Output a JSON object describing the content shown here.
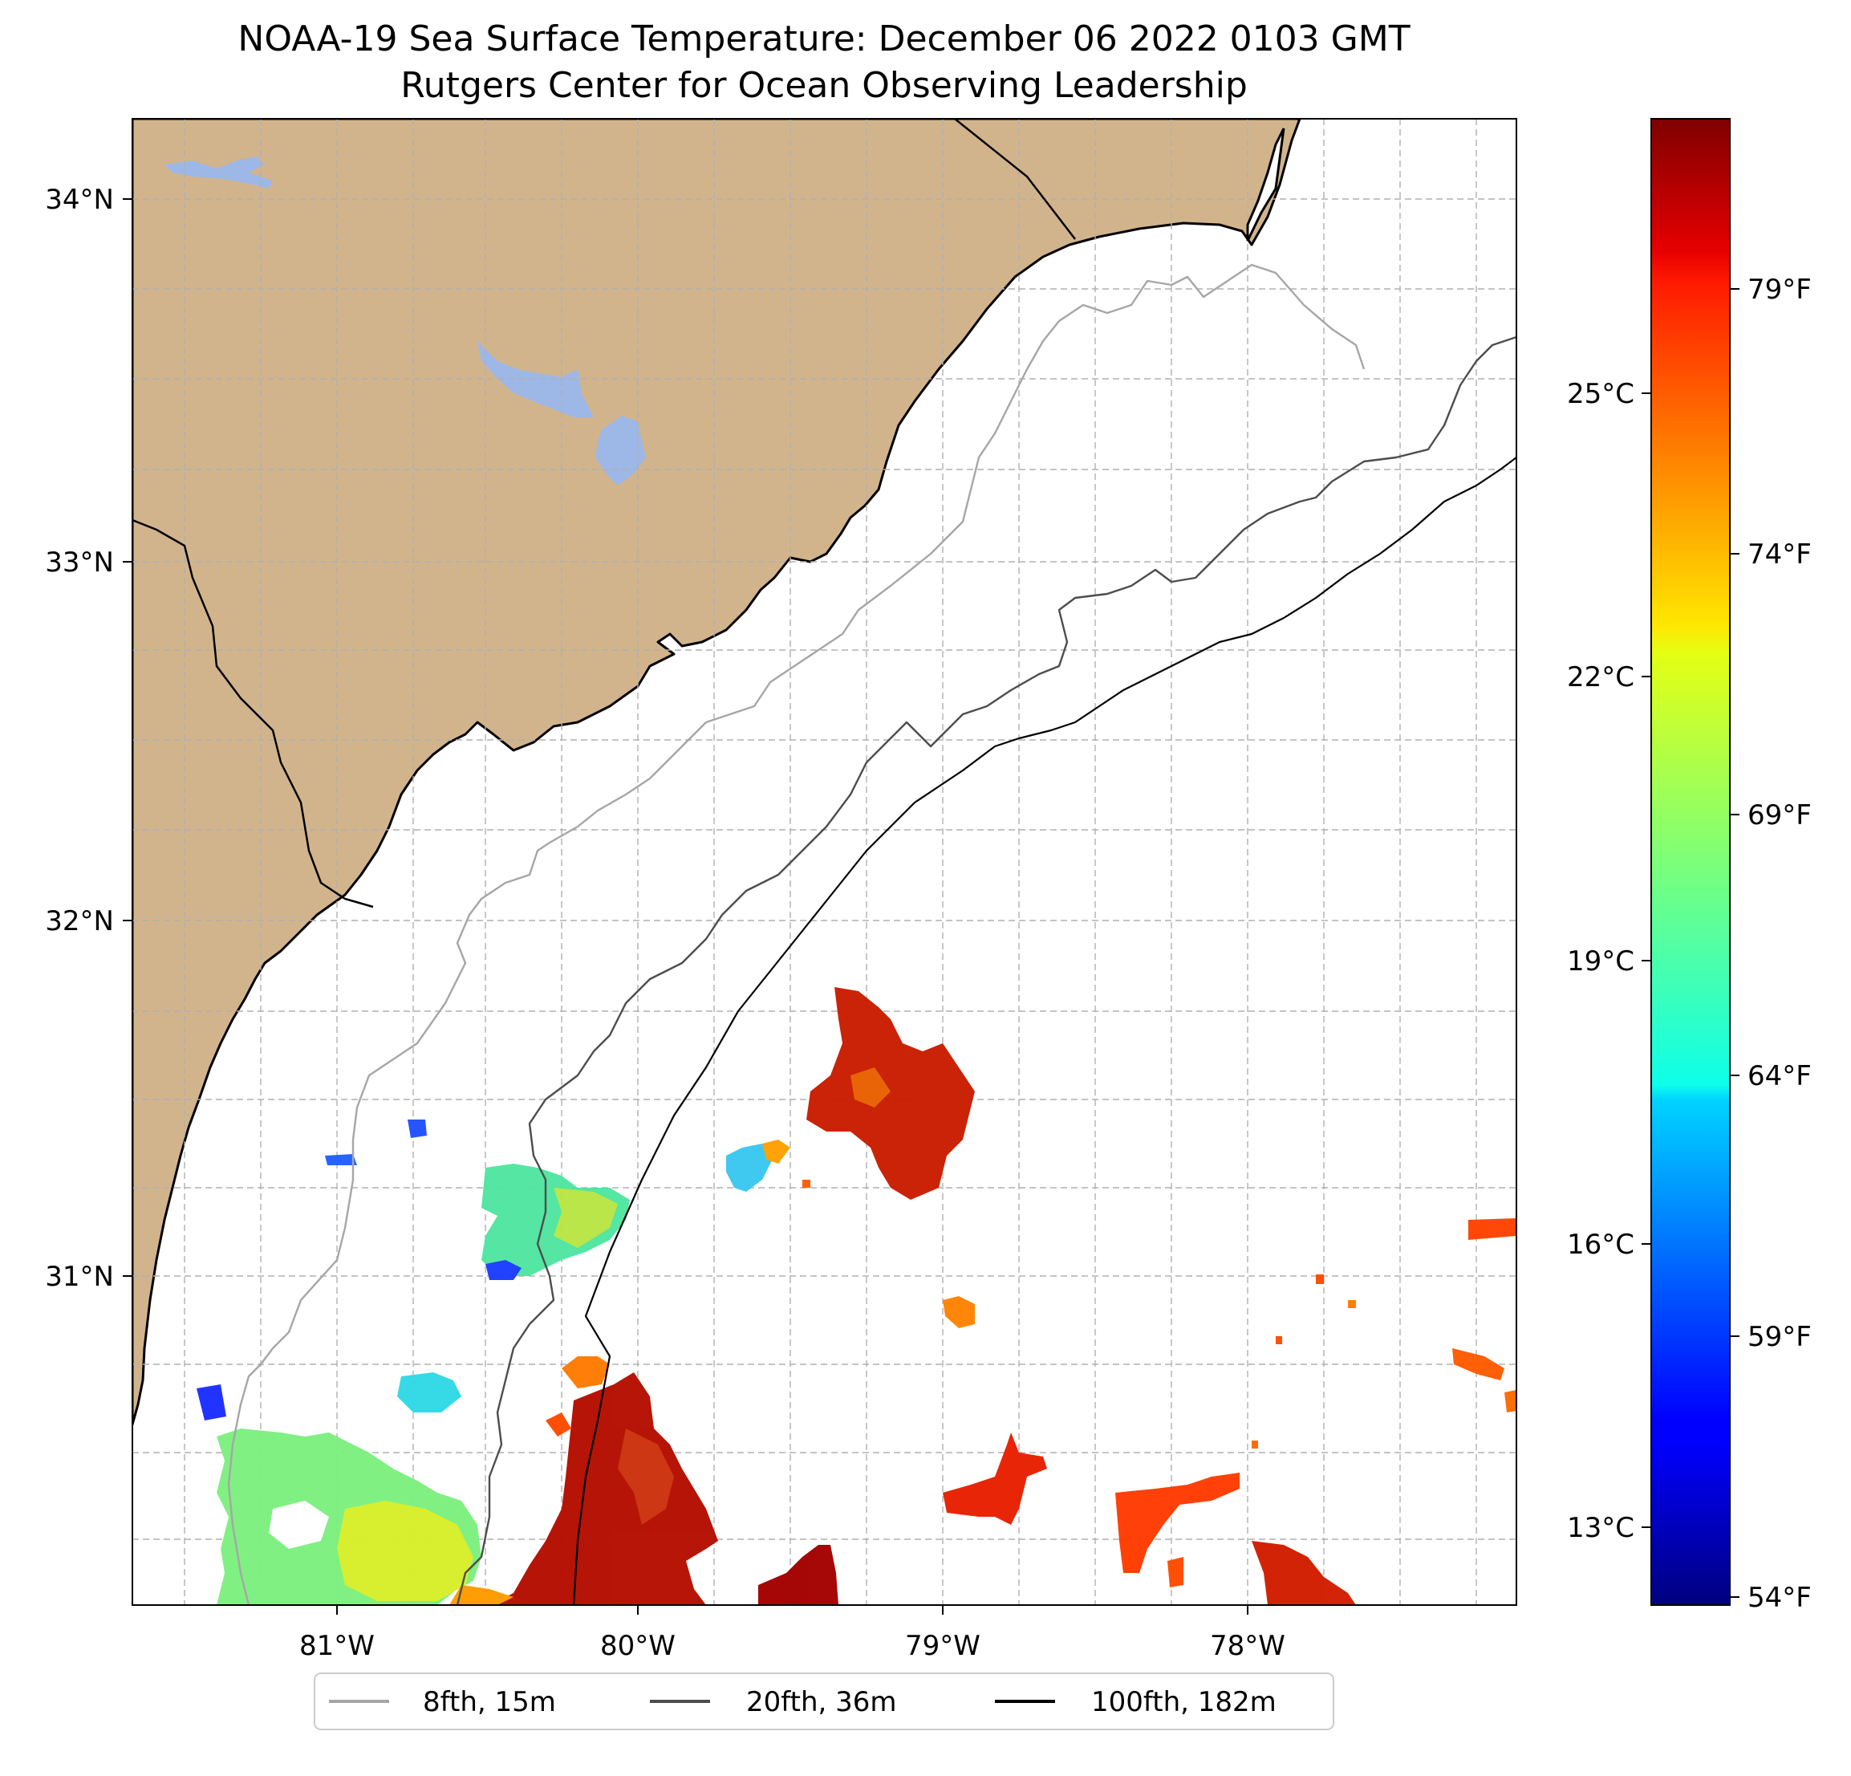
{
  "title": {
    "line1": "NOAA-19 Sea Surface Temperature: December 06 2022 0103 GMT",
    "line2": "Rutgers Center for Ocean Observing Leadership"
  },
  "map": {
    "lon_range": [
      -81.67,
      -77.1
    ],
    "lat_range": [
      30.07,
      34.22
    ],
    "lon_ticks": [
      {
        "value": -81,
        "label": "81°W"
      },
      {
        "value": -80,
        "label": "80°W"
      },
      {
        "value": -79,
        "label": "79°W"
      },
      {
        "value": -78,
        "label": "78°W"
      }
    ],
    "lat_ticks": [
      {
        "value": 31,
        "label": "31°N"
      },
      {
        "value": 32,
        "label": "32°N"
      },
      {
        "value": 33,
        "label": "33°N"
      },
      {
        "value": 34,
        "label": "34°N"
      }
    ],
    "colors": {
      "land": "#d2b48c",
      "water_bodies": "#9db8e6",
      "coastline": "#000000",
      "grid": "#b0b0b0"
    }
  },
  "colorbar": {
    "colormap": "jet",
    "range_f": [
      53.8,
      82.3
    ],
    "celsius_ticks": [
      {
        "value": 13,
        "label": "13°C"
      },
      {
        "value": 16,
        "label": "16°C"
      },
      {
        "value": 19,
        "label": "19°C"
      },
      {
        "value": 22,
        "label": "22°C"
      },
      {
        "value": 25,
        "label": "25°C"
      }
    ],
    "fahrenheit_ticks": [
      {
        "value": 54,
        "label": "54°F"
      },
      {
        "value": 59,
        "label": "59°F"
      },
      {
        "value": 64,
        "label": "64°F"
      },
      {
        "value": 69,
        "label": "69°F"
      },
      {
        "value": 74,
        "label": "74°F"
      },
      {
        "value": 79,
        "label": "79°F"
      }
    ]
  },
  "legend": {
    "items": [
      {
        "label": "8fth, 15m",
        "color": "#a6a6a6"
      },
      {
        "label": "20fth, 36m",
        "color": "#4d4d4d"
      },
      {
        "label": "100fth, 182m",
        "color": "#000000"
      }
    ]
  }
}
